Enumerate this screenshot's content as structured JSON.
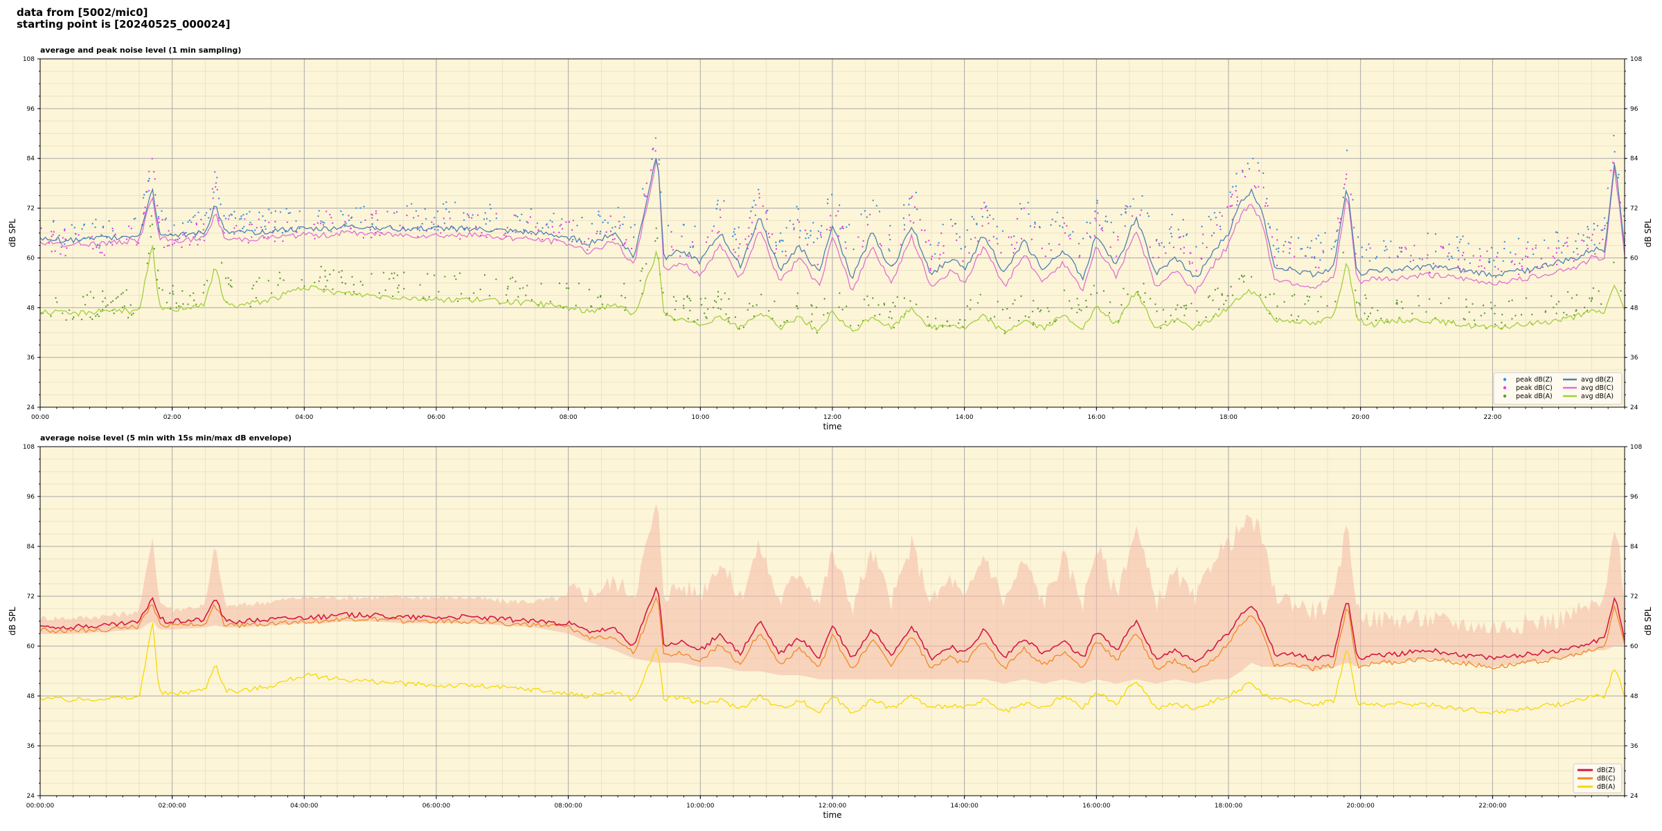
{
  "header": {
    "line1": "data from [5002/mic0]",
    "line2": "starting point is [20240525_000024]"
  },
  "chart_data": [
    {
      "type": "line",
      "title": "average and peak noise level (1 min sampling)",
      "xlabel": "time",
      "ylabel": "dB SPL",
      "ylim": [
        24,
        108
      ],
      "yticks": [
        24,
        36,
        48,
        60,
        72,
        84,
        96,
        108
      ],
      "xlim_hours": [
        0,
        24
      ],
      "xtick_labels": [
        "00:00",
        "02:00",
        "04:00",
        "06:00",
        "08:00",
        "10:00",
        "12:00",
        "14:00",
        "16:00",
        "18:00",
        "20:00",
        "22:00"
      ],
      "background": "#fdf5d8",
      "grid": true,
      "legend_position": "lower-right",
      "legend_columns": 2,
      "x_hours": [
        0,
        0.5,
        1,
        1.5,
        1.7,
        1.8,
        1.9,
        2,
        2.5,
        2.65,
        2.8,
        3,
        3.5,
        4,
        4.3,
        4.6,
        5,
        5.5,
        6,
        6.5,
        7,
        7.5,
        8,
        8.3,
        8.7,
        9,
        9.35,
        9.45,
        9.7,
        10,
        10.3,
        10.6,
        10.9,
        11.2,
        11.5,
        11.8,
        12,
        12.3,
        12.6,
        12.9,
        13.2,
        13.5,
        13.8,
        14,
        14.3,
        14.6,
        14.9,
        15.2,
        15.5,
        15.8,
        16,
        16.3,
        16.6,
        16.9,
        17.2,
        17.5,
        17.8,
        18,
        18.2,
        18.35,
        18.5,
        18.7,
        19,
        19.3,
        19.6,
        19.8,
        19.95,
        20.2,
        20.5,
        21,
        21.5,
        22,
        22.5,
        23,
        23.3,
        23.5,
        23.7,
        23.85,
        24
      ],
      "series": [
        {
          "name": "avg dB(Z)",
          "kind": "line",
          "color": "#4d7fb0",
          "values": [
            64.5,
            64.3,
            64.8,
            65.5,
            77,
            66,
            66,
            65.5,
            66,
            73,
            66,
            66,
            66.5,
            67,
            67,
            67.5,
            67.5,
            67,
            67,
            67,
            66.5,
            66,
            65,
            63.5,
            66,
            60,
            86,
            60,
            62,
            59,
            66,
            58,
            70,
            57,
            63,
            56,
            68,
            55,
            66,
            57,
            68,
            56,
            60,
            57,
            66,
            56,
            64,
            57,
            62,
            55,
            66,
            58,
            70,
            56,
            60,
            55,
            62,
            66,
            74,
            76,
            72,
            58,
            57,
            56,
            58,
            78,
            56,
            57,
            57,
            58,
            57,
            56,
            57,
            59,
            60,
            62,
            62,
            84,
            63
          ],
          "peak_values": [
            65.5,
            65.5,
            66,
            67,
            85,
            68,
            68,
            67,
            68,
            78,
            68,
            68,
            69,
            70,
            70,
            70,
            70,
            70,
            70,
            70,
            69,
            69,
            68,
            67,
            70,
            66,
            90,
            66,
            66,
            66,
            73,
            64,
            76,
            64,
            70,
            64,
            75,
            63,
            73,
            64,
            75,
            63,
            68,
            64,
            73,
            63,
            72,
            64,
            70,
            63,
            73,
            65,
            78,
            64,
            68,
            63,
            70,
            73,
            82,
            84,
            80,
            64,
            63,
            62,
            64,
            85,
            62,
            62,
            62,
            63,
            62,
            61,
            62,
            64,
            65,
            66,
            67,
            88,
            68
          ]
        },
        {
          "name": "avg dB(C)",
          "kind": "line",
          "color": "#e070d0",
          "values": [
            63.5,
            63.2,
            63.6,
            64.3,
            75,
            64.5,
            64.5,
            64.2,
            64.5,
            71,
            64.5,
            64.5,
            65,
            65.5,
            65.5,
            66,
            66,
            65.5,
            65.5,
            65.5,
            65,
            64.5,
            63.5,
            61.5,
            64,
            58,
            85,
            57,
            59,
            56,
            63,
            55,
            67,
            54,
            60,
            53,
            65,
            52,
            63,
            54,
            65,
            53,
            57,
            54,
            63,
            53,
            61,
            54,
            59,
            52,
            63,
            55,
            67,
            53,
            57,
            52,
            59,
            63,
            71,
            73,
            69,
            55,
            54,
            53,
            55,
            76,
            54,
            55,
            55,
            56,
            55,
            54,
            55,
            57,
            58,
            60,
            60,
            82,
            61
          ],
          "peak_values": [
            64,
            64,
            64,
            65,
            83,
            66,
            66,
            65,
            66,
            76,
            66,
            66,
            67,
            68,
            68,
            68,
            68,
            68,
            68,
            68,
            67,
            67,
            66,
            65,
            68,
            63,
            88,
            63,
            63,
            63,
            70,
            61,
            73,
            61,
            67,
            61,
            72,
            60,
            70,
            61,
            72,
            60,
            65,
            61,
            70,
            60,
            69,
            61,
            67,
            60,
            70,
            62,
            75,
            61,
            65,
            60,
            67,
            70,
            79,
            81,
            77,
            61,
            60,
            59,
            61,
            82,
            59,
            59,
            59,
            60,
            59,
            58,
            59,
            61,
            62,
            63,
            64,
            86,
            65
          ]
        },
        {
          "name": "avg dB(A)",
          "kind": "line",
          "color": "#a0cf3a",
          "values": [
            47,
            46.5,
            47.5,
            47,
            63,
            48,
            48,
            47.5,
            49,
            58,
            49,
            48.5,
            50,
            53,
            52,
            51.5,
            51,
            50.5,
            50,
            50,
            49.5,
            49,
            48,
            47,
            49,
            46,
            62,
            46,
            45,
            44,
            46,
            43,
            47,
            43,
            46,
            42,
            47,
            42,
            46,
            43,
            48,
            43,
            44,
            43,
            46,
            42,
            45,
            43,
            46,
            43,
            48,
            44,
            52,
            43,
            45,
            43,
            46,
            48,
            51,
            52,
            50,
            45,
            45,
            44,
            46,
            60,
            45,
            44,
            45,
            45,
            44,
            43,
            44,
            45,
            46,
            47,
            47,
            54,
            47
          ],
          "peak_values": [
            48,
            48,
            49,
            49,
            69,
            51,
            51,
            50,
            52,
            63,
            52,
            51,
            53,
            56,
            55,
            54,
            54,
            53,
            53,
            53,
            52,
            52,
            51,
            50,
            52,
            49,
            66,
            49,
            48,
            47,
            49,
            46,
            50,
            46,
            49,
            45,
            50,
            45,
            49,
            46,
            51,
            46,
            47,
            46,
            49,
            45,
            48,
            46,
            49,
            46,
            51,
            47,
            55,
            46,
            48,
            46,
            49,
            51,
            54,
            55,
            53,
            48,
            48,
            47,
            49,
            64,
            48,
            47,
            48,
            48,
            47,
            46,
            47,
            48,
            49,
            50,
            50,
            58,
            50
          ]
        },
        {
          "name": "peak dB(Z)",
          "kind": "scatter",
          "color": "#3d8fd8"
        },
        {
          "name": "peak dB(C)",
          "kind": "scatter",
          "color": "#e040e0"
        },
        {
          "name": "peak dB(A)",
          "kind": "scatter",
          "color": "#5a9a30"
        }
      ],
      "legend": [
        "peak dB(Z)",
        "peak dB(C)",
        "peak dB(A)",
        "avg dB(Z)",
        "avg dB(C)",
        "avg dB(A)"
      ]
    },
    {
      "type": "line",
      "title": "average noise level (5 min with 15s min/max dB envelope)",
      "xlabel": "time",
      "ylabel": "dB SPL",
      "ylim": [
        24,
        108
      ],
      "yticks": [
        24,
        36,
        48,
        60,
        72,
        84,
        96,
        108
      ],
      "xlim_hours": [
        0,
        24
      ],
      "xtick_labels": [
        "00:00:00",
        "02:00:00",
        "04:00:00",
        "06:00:00",
        "08:00:00",
        "10:00:00",
        "12:00:00",
        "14:00:00",
        "16:00:00",
        "18:00:00",
        "20:00:00",
        "22:00:00"
      ],
      "background": "#fdf5d8",
      "grid": true,
      "legend_position": "lower-right",
      "legend_columns": 1,
      "envelope_color": "#f4b8a8",
      "x_hours": [
        0,
        0.5,
        1,
        1.5,
        1.7,
        1.8,
        1.9,
        2,
        2.5,
        2.65,
        2.8,
        3,
        3.5,
        4,
        4.3,
        4.6,
        5,
        5.5,
        6,
        6.5,
        7,
        7.5,
        8,
        8.3,
        8.7,
        9,
        9.35,
        9.45,
        9.7,
        10,
        10.3,
        10.6,
        10.9,
        11.2,
        11.5,
        11.8,
        12,
        12.3,
        12.6,
        12.9,
        13.2,
        13.5,
        13.8,
        14,
        14.3,
        14.6,
        14.9,
        15.2,
        15.5,
        15.8,
        16,
        16.3,
        16.6,
        16.9,
        17.2,
        17.5,
        17.8,
        18,
        18.2,
        18.35,
        18.5,
        18.7,
        19,
        19.3,
        19.6,
        19.8,
        19.95,
        20.2,
        20.5,
        21,
        21.5,
        22,
        22.5,
        23,
        23.3,
        23.5,
        23.7,
        23.85,
        24
      ],
      "series": [
        {
          "name": "dB(Z)",
          "color": "#d4183c",
          "values": [
            64.8,
            64.6,
            65,
            65.8,
            72,
            67,
            66,
            66,
            66.5,
            72,
            66,
            66,
            66.5,
            67,
            67,
            67.5,
            67.5,
            67,
            67,
            67,
            66.5,
            66,
            65.5,
            63.5,
            64,
            60,
            75,
            60,
            61,
            59,
            63,
            58,
            66,
            58,
            62,
            57,
            65,
            57,
            64,
            58,
            65,
            57,
            60,
            58,
            64,
            57,
            62,
            58,
            61,
            57,
            64,
            59,
            66,
            57,
            59,
            56,
            60,
            63,
            68,
            70,
            66,
            58,
            58,
            57,
            58,
            72,
            57,
            58,
            58,
            59,
            58,
            57,
            58,
            59,
            60,
            61,
            62,
            72,
            62
          ],
          "envelope_max": [
            66,
            66,
            66.5,
            67.5,
            86,
            70,
            69,
            68,
            69,
            84,
            69,
            69,
            70,
            71,
            71,
            71,
            71,
            71,
            71,
            71,
            70,
            70,
            71,
            70,
            73,
            70,
            92,
            70,
            72,
            70,
            78,
            69,
            82,
            68,
            76,
            68,
            80,
            67,
            80,
            68,
            82,
            68,
            74,
            68,
            80,
            68,
            78,
            68,
            79,
            68,
            82,
            70,
            86,
            68,
            75,
            68,
            80,
            82,
            86,
            88,
            84,
            70,
            68,
            66,
            68,
            88,
            66,
            64,
            64,
            64,
            63,
            62,
            63,
            64,
            66,
            67,
            68,
            88,
            70
          ],
          "envelope_min": [
            63,
            63,
            63.5,
            64,
            66,
            64,
            64,
            64,
            64.5,
            65,
            64.5,
            64.5,
            65,
            65.5,
            65.5,
            66,
            66,
            65.5,
            65.5,
            65.5,
            65,
            64.5,
            63,
            61,
            59,
            57,
            56,
            56,
            56,
            55,
            55,
            54,
            54,
            53,
            53,
            52,
            52,
            52,
            52,
            52,
            52,
            52,
            52,
            52,
            52,
            51,
            52,
            51,
            52,
            51,
            52,
            51,
            52,
            51,
            52,
            51,
            52,
            52,
            54,
            56,
            55,
            55,
            55,
            54,
            55,
            56,
            55,
            56,
            56,
            57,
            56,
            55,
            56,
            57,
            58,
            59,
            59,
            60,
            60
          ]
        },
        {
          "name": "dB(C)",
          "color": "#f08820",
          "values": [
            63.8,
            63.6,
            64,
            64.8,
            70.5,
            65.5,
            65,
            65,
            65.5,
            70,
            65,
            65,
            65.5,
            66,
            66,
            66.5,
            66.5,
            66,
            66,
            66,
            65.5,
            65,
            64.5,
            62,
            62.5,
            58,
            73,
            57.5,
            58.5,
            56.5,
            60.5,
            55.5,
            63.5,
            55.5,
            59.5,
            54.5,
            62.5,
            54.5,
            61.5,
            55.5,
            62.5,
            54.5,
            57.5,
            55.5,
            61.5,
            54.5,
            59.5,
            55.5,
            58.5,
            54.5,
            61.5,
            56.5,
            63.5,
            54.5,
            56.5,
            53.5,
            57.5,
            60.5,
            65.5,
            67.5,
            63.5,
            55.5,
            55.5,
            54.5,
            55.5,
            70,
            55,
            56,
            56,
            57,
            56,
            55,
            56,
            57,
            58,
            59,
            60,
            70,
            60
          ]
        },
        {
          "name": "dB(A)",
          "color": "#f5d800",
          "values": [
            47.5,
            47,
            47.5,
            47.5,
            66,
            49,
            48.5,
            48.5,
            49.5,
            56,
            49.5,
            49,
            50.5,
            53,
            52.5,
            52,
            51.5,
            51,
            50.5,
            50.5,
            50,
            49.5,
            48.5,
            48,
            49,
            47,
            60,
            47,
            48,
            46,
            47,
            45,
            48,
            45,
            47,
            44,
            48,
            44,
            47,
            45,
            48,
            45,
            46,
            45,
            47,
            44,
            46,
            45,
            48,
            45,
            49,
            46,
            52,
            45,
            46,
            45,
            47,
            48,
            50,
            51,
            49,
            47,
            47,
            46,
            47,
            60,
            46,
            46,
            46,
            46,
            45,
            44,
            45,
            46,
            47,
            48,
            48,
            55,
            48
          ]
        }
      ],
      "legend": [
        "dB(Z)",
        "dB(C)",
        "dB(A)"
      ]
    }
  ]
}
